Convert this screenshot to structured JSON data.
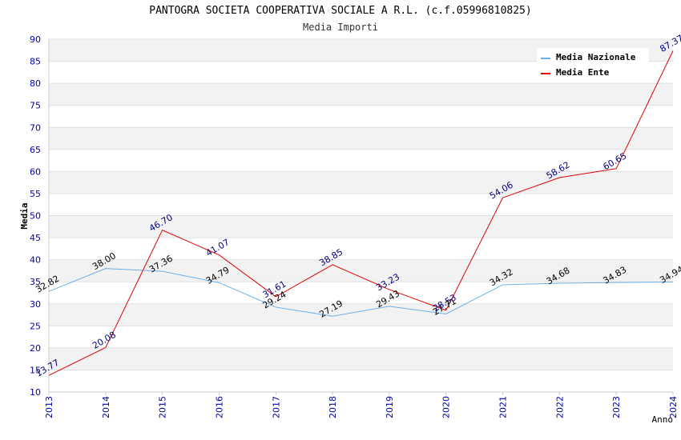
{
  "chart_data": {
    "type": "line",
    "title": "PANTOGRA SOCIETA COOPERATIVA SOCIALE A R.L. (c.f.05996810825)",
    "subtitle": "Media Importi",
    "xlabel": "Anno",
    "ylabel": "Media",
    "ylim": [
      10,
      90
    ],
    "yticks": [
      10,
      15,
      20,
      25,
      30,
      35,
      40,
      45,
      50,
      55,
      60,
      65,
      70,
      75,
      80,
      85,
      90
    ],
    "x": [
      "2013",
      "2014",
      "2015",
      "2016",
      "2017",
      "2018",
      "2019",
      "2020",
      "2021",
      "2022",
      "2023",
      "2024"
    ],
    "legend_position": "top-right",
    "grid": true,
    "series": [
      {
        "name": "Media Nazionale",
        "color": "#6aaee8",
        "label_color": "#000000",
        "values": [
          32.82,
          38.0,
          37.36,
          34.79,
          29.24,
          27.19,
          29.43,
          27.71,
          34.32,
          34.68,
          34.83,
          34.94
        ],
        "labels": [
          "32.82",
          "38.00",
          "37.36",
          "34.79",
          "29.24",
          "27.19",
          "29.43",
          "27.71",
          "34.32",
          "34.68",
          "34.83",
          "34.94"
        ]
      },
      {
        "name": "Media Ente",
        "color": "#dd0000",
        "label_color": "#000080",
        "values": [
          13.77,
          20.08,
          46.7,
          41.07,
          31.61,
          38.85,
          33.23,
          28.53,
          54.06,
          58.62,
          60.65,
          87.37
        ],
        "labels": [
          "13.77",
          "20.08",
          "46.70",
          "41.07",
          "31.61",
          "38.85",
          "33.23",
          "28.53",
          "54.06",
          "58.62",
          "60.65",
          "87.37"
        ]
      }
    ]
  }
}
